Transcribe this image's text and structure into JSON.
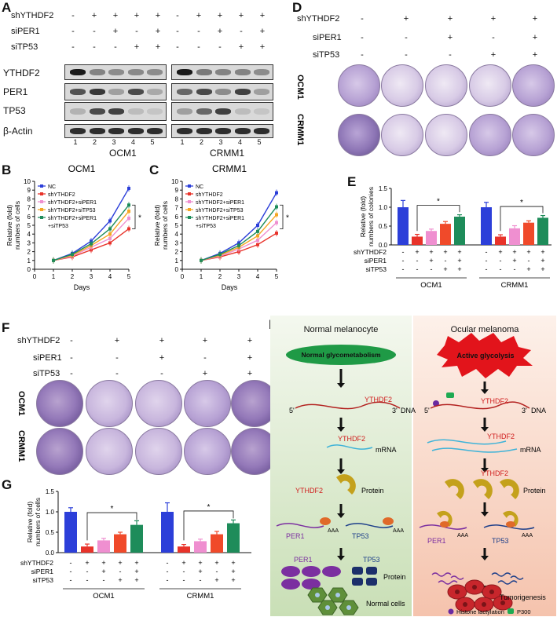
{
  "panels": {
    "A": "A",
    "B": "B",
    "C": "C",
    "D": "D",
    "E": "E",
    "F": "F",
    "G": "G",
    "H": "H"
  },
  "row_labels": {
    "shYTHDF2": "shYTHDF2",
    "siPER1": "siPER1",
    "siTP53": "siTP53"
  },
  "sign_rows_5": {
    "shYTHDF2": [
      "-",
      "+",
      "+",
      "+",
      "+"
    ],
    "siPER1": [
      "-",
      "-",
      "+",
      "-",
      "+"
    ],
    "siTP53": [
      "-",
      "-",
      "-",
      "+",
      "+"
    ]
  },
  "blot": {
    "proteins": [
      "YTHDF2",
      "PER1",
      "TP53",
      "β-Actin"
    ],
    "lanes": [
      "1",
      "2",
      "3",
      "4",
      "5"
    ],
    "cell_lines": [
      "OCM1",
      "CRMM1"
    ]
  },
  "colony_rows": {
    "row1": "OCM1",
    "row2": "CRMM1"
  },
  "growth_legend": [
    "NC",
    "shYTHDF2",
    "shYTHDF2+siPER1",
    "shYTHDF2+siTP53",
    "shYTHDF2+siPER1",
    "+siTP53"
  ],
  "bar_signs_short": {
    "shYTHDF2": "shYTHDF2",
    "siPER1": "siPER1",
    "siTP53": "siTP53"
  },
  "chart_data": [
    {
      "type": "line",
      "panel": "B",
      "title": "OCM1",
      "xlabel": "Days",
      "ylabel": "Relative (fold) numbers of cells",
      "x": [
        1,
        2,
        3,
        4,
        5
      ],
      "xlim": [
        0,
        5
      ],
      "ylim": [
        0,
        10
      ],
      "yticks": [
        0,
        1,
        2,
        3,
        4,
        5,
        6,
        7,
        8,
        9,
        10
      ],
      "series": [
        {
          "name": "NC",
          "color": "#2c3fd9",
          "values": [
            1,
            1.8,
            3.2,
            5.5,
            9.2
          ]
        },
        {
          "name": "shYTHDF2",
          "color": "#e8332a",
          "values": [
            1,
            1.4,
            2.2,
            3.0,
            4.6
          ]
        },
        {
          "name": "shYTHDF2+siPER1",
          "color": "#ef8fd0",
          "values": [
            1,
            1.5,
            2.5,
            3.5,
            5.8
          ]
        },
        {
          "name": "shYTHDF2+siTP53",
          "color": "#f5a623",
          "values": [
            1,
            1.6,
            2.7,
            4.0,
            6.6
          ]
        },
        {
          "name": "shYTHDF2+siPER1+siTP53",
          "color": "#1e8c5a",
          "values": [
            1,
            1.7,
            2.9,
            4.6,
            7.3
          ]
        }
      ],
      "annotation": "*"
    },
    {
      "type": "line",
      "panel": "C",
      "title": "CRMM1",
      "xlabel": "Days",
      "ylabel": "Relative (fold) numbers of cells",
      "x": [
        1,
        2,
        3,
        4,
        5
      ],
      "xlim": [
        0,
        5
      ],
      "ylim": [
        0,
        10
      ],
      "yticks": [
        0,
        1,
        2,
        3,
        4,
        5,
        6,
        7,
        8,
        9,
        10
      ],
      "series": [
        {
          "name": "NC",
          "color": "#2c3fd9",
          "values": [
            1,
            1.8,
            3.0,
            5.0,
            8.7
          ]
        },
        {
          "name": "shYTHDF2",
          "color": "#e8332a",
          "values": [
            1,
            1.4,
            2.0,
            2.8,
            4.1
          ]
        },
        {
          "name": "shYTHDF2+siPER1",
          "color": "#ef8fd0",
          "values": [
            1,
            1.5,
            2.3,
            3.3,
            5.3
          ]
        },
        {
          "name": "shYTHDF2+siTP53",
          "color": "#f5a623",
          "values": [
            1,
            1.6,
            2.5,
            3.8,
            6.2
          ]
        },
        {
          "name": "shYTHDF2+siPER1+siTP53",
          "color": "#1e8c5a",
          "values": [
            1,
            1.7,
            2.7,
            4.3,
            7.1
          ]
        }
      ],
      "annotation": "*"
    },
    {
      "type": "bar",
      "panel": "E",
      "ylabel": "Relative (fold) numbers of colonies",
      "ylim": [
        0,
        1.5
      ],
      "yticks": [
        0.0,
        0.5,
        1.0,
        1.5
      ],
      "groups": [
        "OCM1",
        "CRMM1"
      ],
      "colors": [
        "#2c3fd9",
        "#e8332a",
        "#ef8fd0",
        "#f04a2a",
        "#1e8c5a"
      ],
      "values": [
        [
          1.0,
          0.22,
          0.37,
          0.56,
          0.75
        ],
        [
          1.0,
          0.22,
          0.44,
          0.59,
          0.72
        ]
      ],
      "errors": [
        [
          0.18,
          0.06,
          0.05,
          0.06,
          0.05
        ],
        [
          0.13,
          0.05,
          0.07,
          0.05,
          0.06
        ]
      ],
      "annotation": "*"
    },
    {
      "type": "bar",
      "panel": "G",
      "ylabel": "Relative (fold) numbers of cells",
      "ylim": [
        0,
        1.5
      ],
      "yticks": [
        0.0,
        0.5,
        1.0,
        1.5
      ],
      "groups": [
        "OCM1",
        "CRMM1"
      ],
      "colors": [
        "#2c3fd9",
        "#e8332a",
        "#ef8fd0",
        "#f04a2a",
        "#1e8c5a"
      ],
      "values": [
        [
          1.0,
          0.15,
          0.3,
          0.45,
          0.68
        ],
        [
          1.0,
          0.15,
          0.28,
          0.45,
          0.72
        ]
      ],
      "errors": [
        [
          0.1,
          0.06,
          0.05,
          0.05,
          0.1
        ],
        [
          0.22,
          0.05,
          0.05,
          0.07,
          0.08
        ]
      ],
      "annotation": "*"
    }
  ],
  "diagram": {
    "left_title": "Normal melanocyte",
    "right_title": "Ocular melanoma",
    "normal_glyco": "Normal glycometabolism",
    "active_glyco": "Active glycolysis",
    "five": "5'",
    "three": "3'",
    "dna": "DNA",
    "mrna": "mRNA",
    "protein": "Protein",
    "ythdf2": "YTHDF2",
    "per1": "PER1",
    "tp53": "TP53",
    "aaa": "AAA",
    "normal_cells": "Normal cells",
    "tumorigenesis": "Tumorigenesis",
    "legend_lact": "Histone lactylation",
    "legend_p300": "P300"
  }
}
